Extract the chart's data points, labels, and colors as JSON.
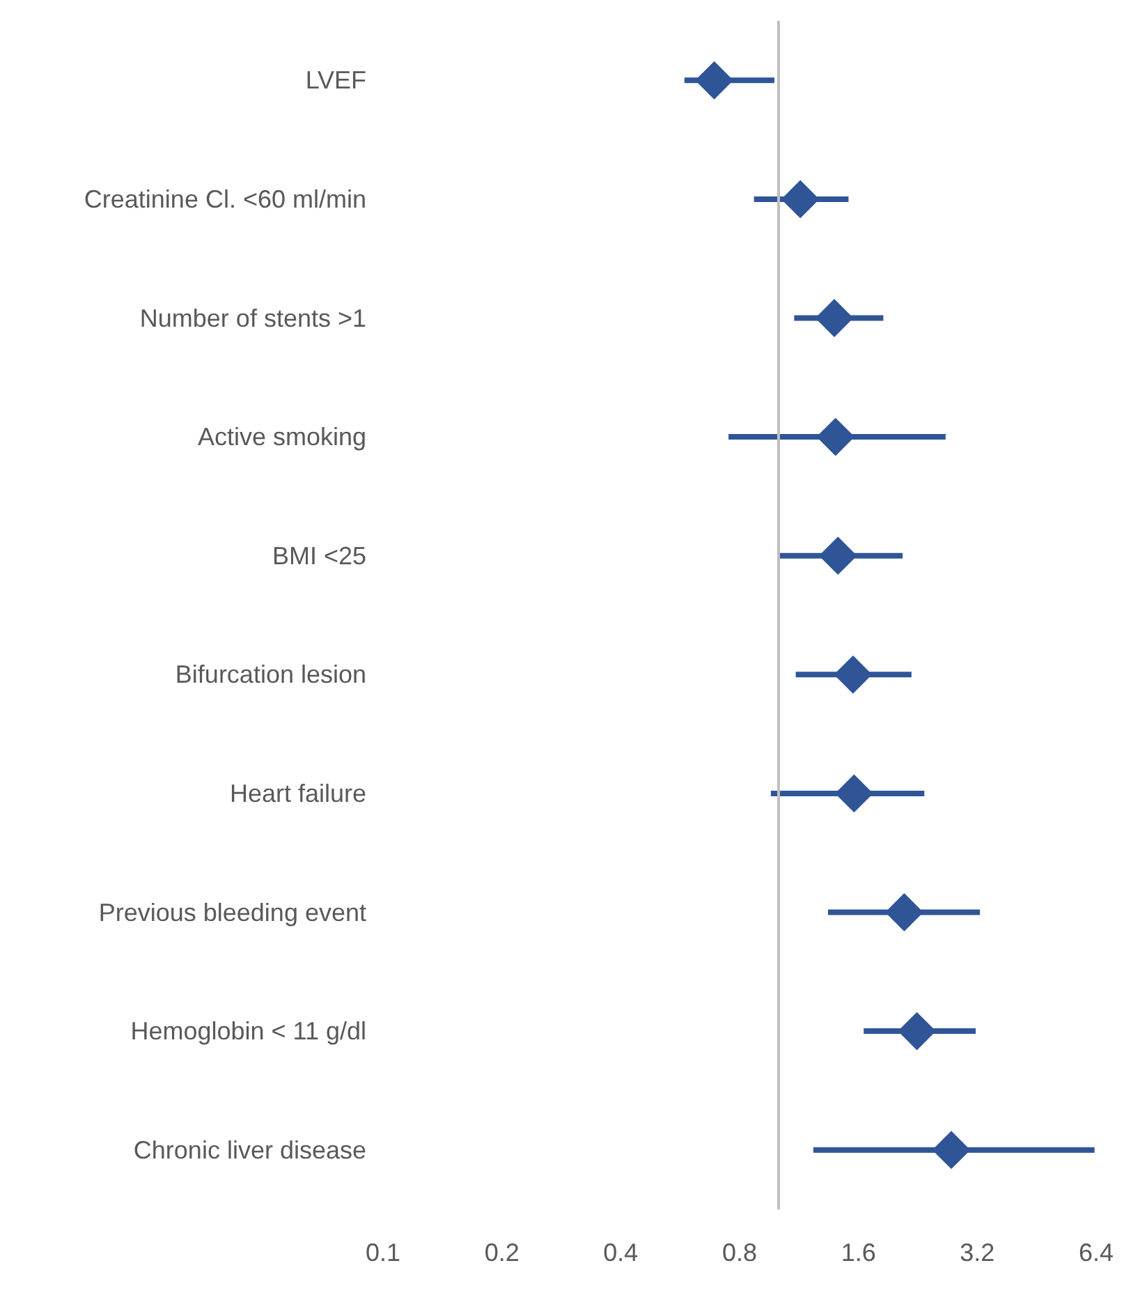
{
  "chart_data": {
    "type": "scatter",
    "orientation": "horizontal",
    "log": "x",
    "grid": false,
    "marker": "diamond",
    "categories": [
      "LVEF",
      "Creatinine Cl. <60 ml/min",
      "Number of stents >1",
      "Active smoking",
      "BMI <25",
      "Bifurcation lesion",
      "Heart failure",
      "Previous bleeding event",
      "Hemoglobin < 11 g/dl",
      "Chronic liver disease"
    ],
    "series": [
      {
        "color": "#2f5597",
        "values": [
          0.69,
          1.14,
          1.39,
          1.4,
          1.42,
          1.55,
          1.56,
          2.09,
          2.25,
          2.75
        ],
        "errors": [
          [
            0.58,
            0.98
          ],
          [
            0.87,
            1.51
          ],
          [
            1.1,
            1.85
          ],
          [
            0.75,
            2.66
          ],
          [
            1.0,
            2.07
          ],
          [
            1.11,
            2.18
          ],
          [
            0.96,
            2.35
          ],
          [
            1.34,
            3.25
          ],
          [
            1.65,
            3.17
          ],
          [
            1.23,
            6.34
          ]
        ]
      }
    ],
    "xlim": [
      0.1,
      6.4
    ],
    "xticks": [
      0.1,
      0.2,
      0.4,
      0.8,
      1.6,
      3.2,
      6.4
    ],
    "ref_lines": [
      {
        "axis": "x",
        "value": 1,
        "color": "#bfbfbf"
      }
    ]
  }
}
